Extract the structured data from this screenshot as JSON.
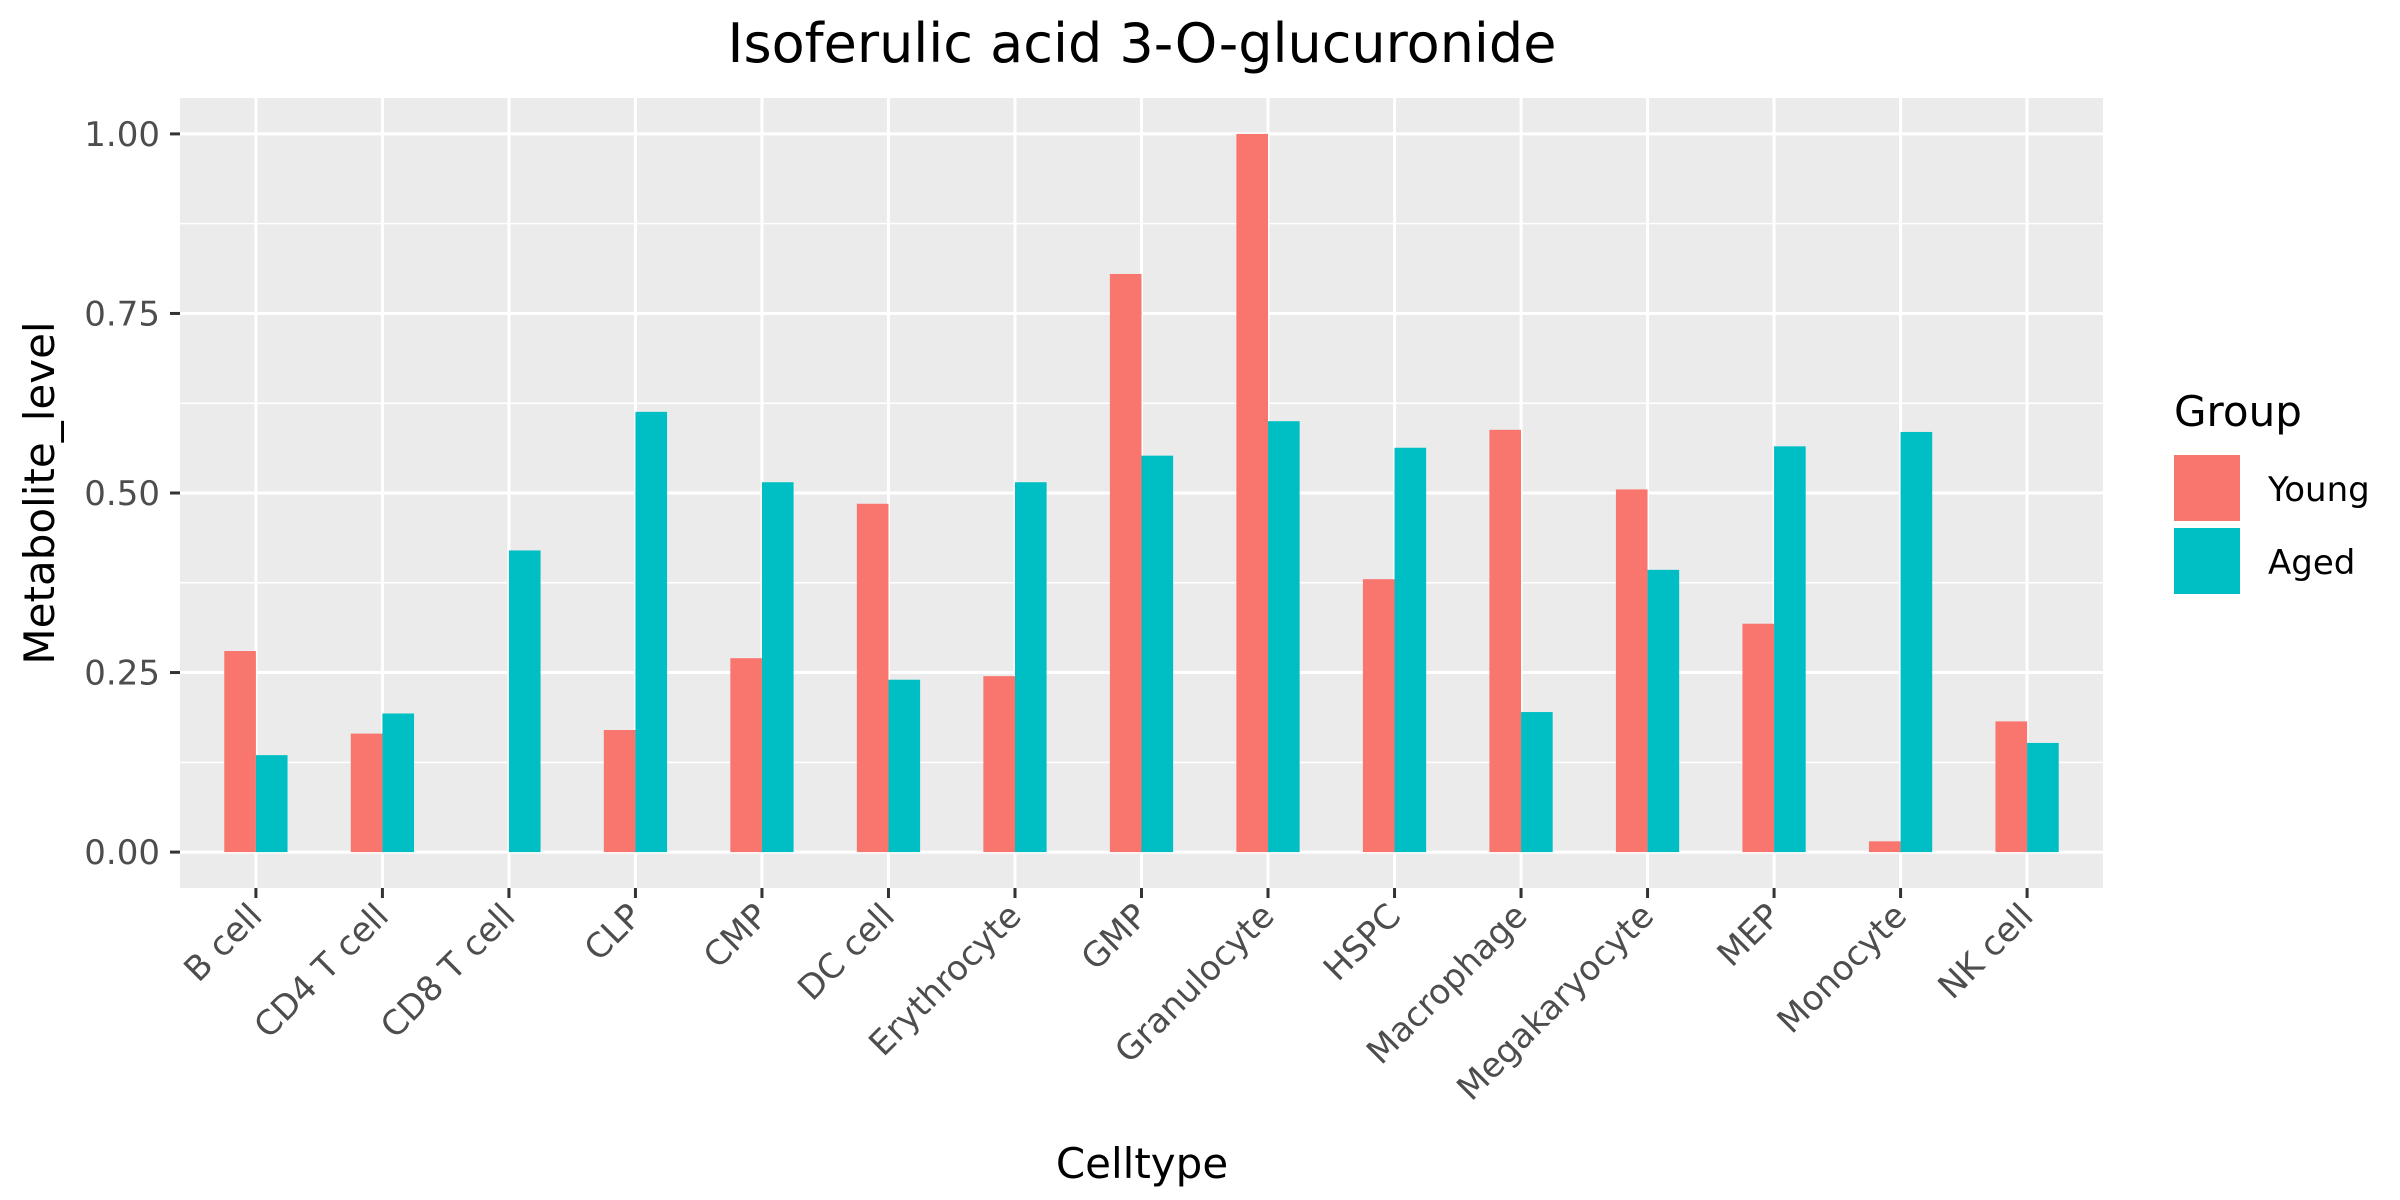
{
  "chart_data": {
    "type": "bar",
    "title": "Isoferulic acid 3-O-glucuronide",
    "xlabel": "Celltype",
    "ylabel": "Metabolite_level",
    "categories": [
      "B cell",
      "CD4 T cell",
      "CD8 T cell",
      "CLP",
      "CMP",
      "DC cell",
      "Erythrocyte",
      "GMP",
      "Granulocyte",
      "HSPC",
      "Macrophage",
      "Megakaryocyte",
      "MEP",
      "Monocyte",
      "NK cell"
    ],
    "series": [
      {
        "name": "Young",
        "color": "#F8766D",
        "values": [
          0.28,
          0.165,
          0.0,
          0.17,
          0.27,
          0.485,
          0.245,
          0.805,
          1.0,
          0.38,
          0.588,
          0.505,
          0.318,
          0.015,
          0.182
        ]
      },
      {
        "name": "Aged",
        "color": "#00BFC4",
        "values": [
          0.135,
          0.193,
          0.42,
          0.613,
          0.515,
          0.24,
          0.515,
          0.552,
          0.6,
          0.563,
          0.195,
          0.393,
          0.565,
          0.585,
          0.152
        ]
      }
    ],
    "ylim": [
      -0.05,
      1.05
    ],
    "yticks": [
      "0.00",
      "0.25",
      "0.50",
      "0.75",
      "1.00"
    ],
    "grid": true,
    "legend": {
      "title": "Group",
      "position": "right"
    }
  }
}
